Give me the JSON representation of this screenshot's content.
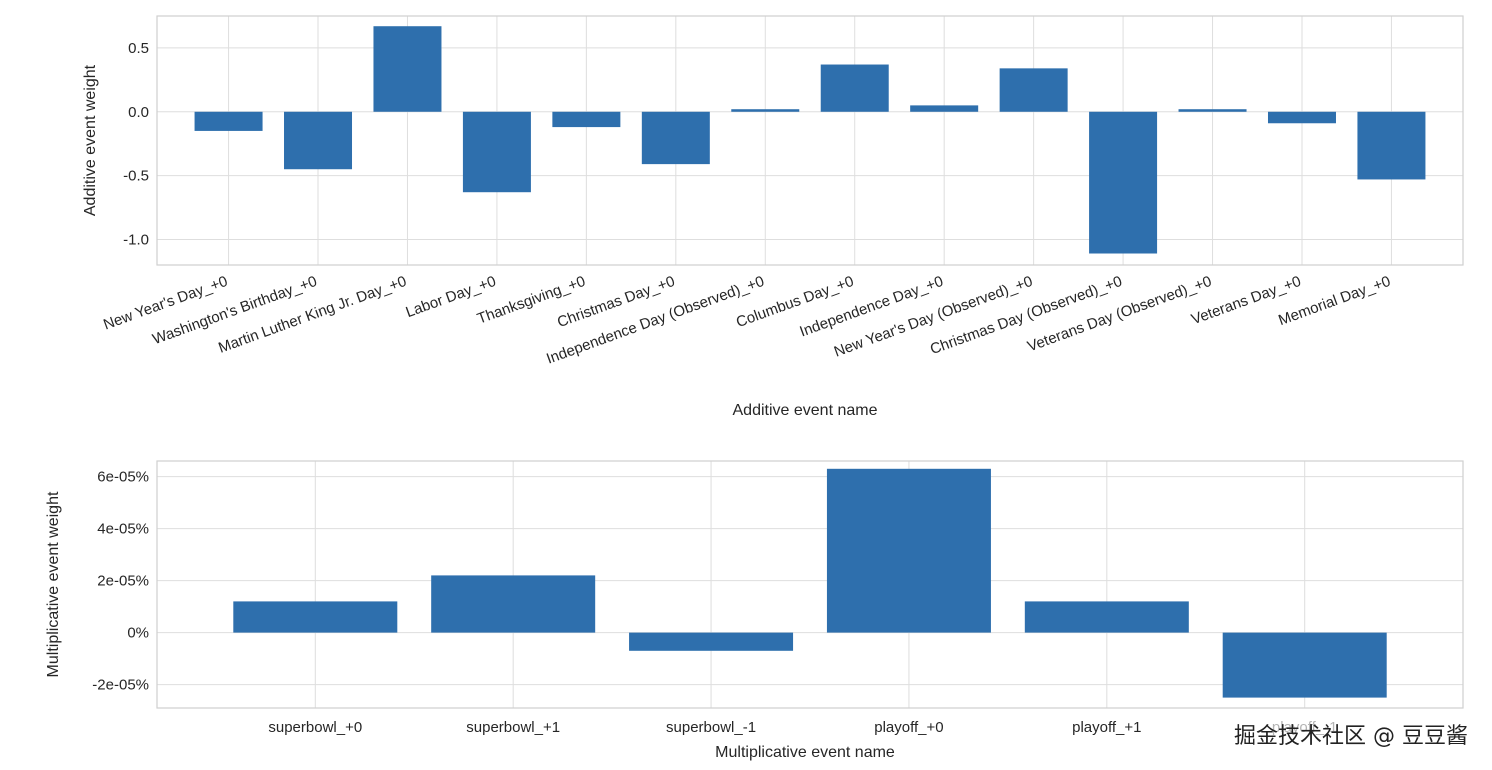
{
  "chart_data": [
    {
      "type": "bar",
      "title": "",
      "xlabel": "Additive event name",
      "ylabel": "Additive event weight",
      "ylim": [
        -1.2,
        0.75
      ],
      "yticks": [
        0.5,
        0.0,
        -0.5,
        -1.0
      ],
      "ytick_labels": [
        "0.5",
        "0.0",
        "-0.5",
        "-1.0"
      ],
      "tick_rotation": -20,
      "grid": true,
      "color": "#2e6fad",
      "categories": [
        "New Year's Day_+0",
        "Washington's Birthday_+0",
        "Martin Luther King Jr. Day_+0",
        "Labor Day_+0",
        "Thanksgiving_+0",
        "Christmas Day_+0",
        "Independence Day (Observed)_+0",
        "Columbus Day_+0",
        "Independence Day_+0",
        "New Year's Day (Observed)_+0",
        "Christmas Day (Observed)_+0",
        "Veterans Day (Observed)_+0",
        "Veterans Day_+0",
        "Memorial Day_+0"
      ],
      "values": [
        -0.15,
        -0.45,
        0.67,
        -0.63,
        -0.12,
        -0.41,
        0.02,
        0.37,
        0.05,
        0.34,
        -1.11,
        0.02,
        -0.09,
        -0.53
      ]
    },
    {
      "type": "bar",
      "title": "",
      "xlabel": "Multiplicative event name",
      "ylabel": "Multiplicative event weight",
      "ylim": [
        -2.9e-07,
        6.6e-07
      ],
      "yticks": [
        6e-07,
        4e-07,
        2e-07,
        0,
        -2e-07
      ],
      "ytick_labels": [
        "6e-05%",
        "4e-05%",
        "2e-05%",
        "0%",
        "-2e-05%"
      ],
      "tick_rotation": 0,
      "grid": true,
      "color": "#2e6fad",
      "categories": [
        "superbowl_+0",
        "superbowl_+1",
        "superbowl_-1",
        "playoff_+0",
        "playoff_+1",
        "playoff_-1"
      ],
      "values": [
        1.2e-07,
        2.2e-07,
        -7e-08,
        6.3e-07,
        1.2e-07,
        -2.5e-07
      ]
    }
  ],
  "watermark": "掘金技术社区 @ 豆豆酱"
}
